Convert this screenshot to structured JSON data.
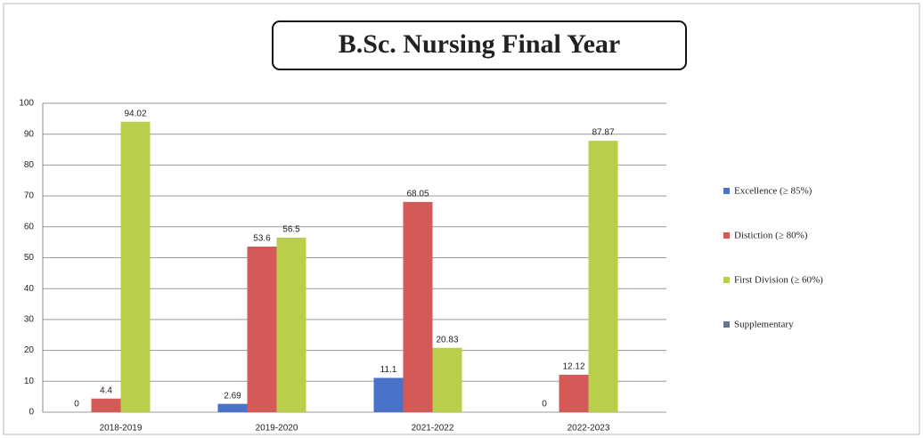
{
  "chart_data": {
    "type": "bar",
    "title": "B.Sc. Nursing Final Year",
    "categories": [
      "2018-2019",
      "2019-2020",
      "2021-2022",
      "2022-2023"
    ],
    "series": [
      {
        "name": "Excellence (≥ 85%)",
        "color": "#4a72c8",
        "values": [
          0,
          2.69,
          11.1,
          0
        ]
      },
      {
        "name": "Distiction (≥ 80%)",
        "color": "#d45a57",
        "values": [
          4.4,
          53.6,
          68.05,
          12.12
        ]
      },
      {
        "name": "First Division (≥ 60%)",
        "color": "#b9cf4c",
        "values": [
          94.02,
          56.5,
          20.83,
          87.87
        ]
      },
      {
        "name": "Supplementary",
        "color": "#6a7690",
        "values": [
          null,
          null,
          null,
          null
        ]
      }
    ],
    "ylim": [
      0,
      100
    ],
    "yticks": [
      0,
      10,
      20,
      30,
      40,
      50,
      60,
      70,
      80,
      90,
      100
    ],
    "grid": true,
    "legend": "right"
  }
}
